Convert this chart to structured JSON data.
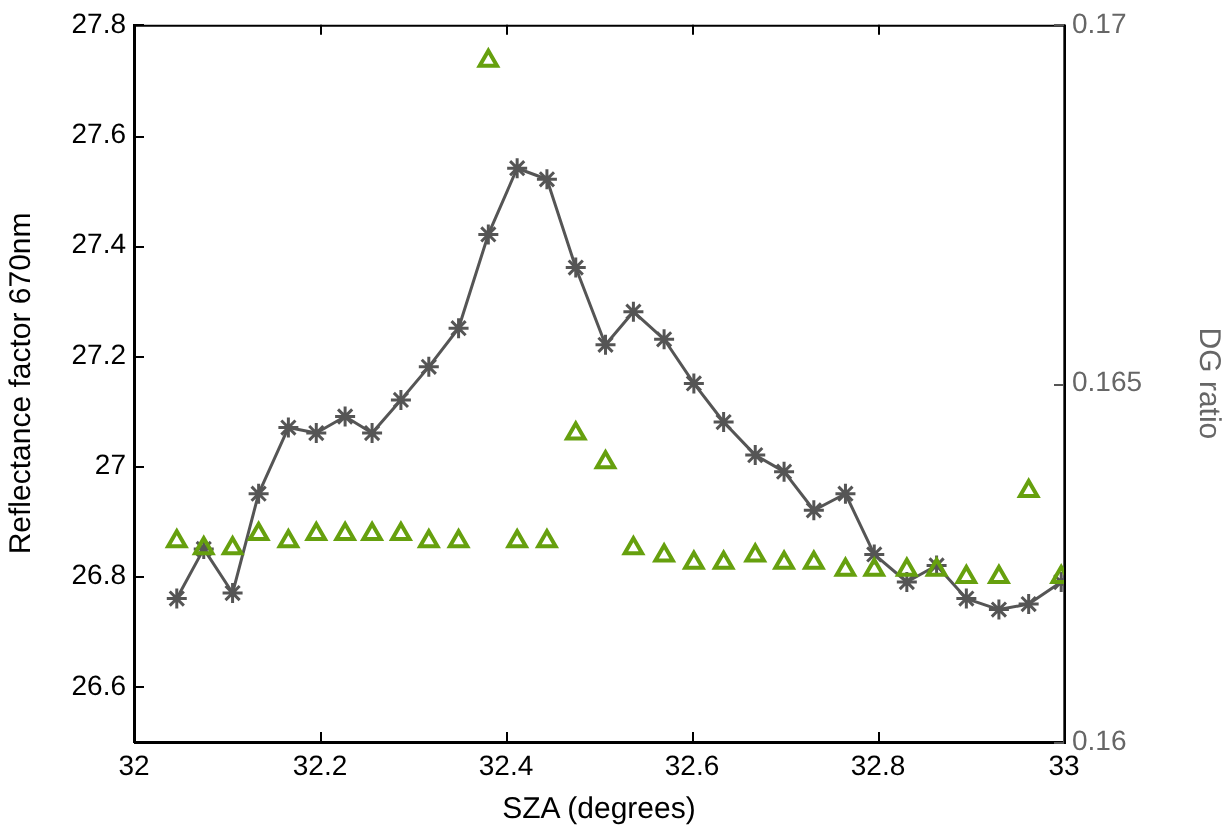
{
  "chart_data": {
    "type": "line",
    "xlabel": "SZA (degrees)",
    "ylabel": "Reflectance factor 670nm",
    "y2label": "DG ratio",
    "xlim": [
      32,
      33
    ],
    "xticks": [
      32,
      32.2,
      32.4,
      32.6,
      32.8,
      33
    ],
    "ylim": [
      26.5,
      27.8
    ],
    "yticks": [
      26.6,
      26.8,
      27,
      27.2,
      27.4,
      27.6,
      27.8
    ],
    "y2lim": [
      0.16,
      0.17
    ],
    "y2ticks": [
      0.16,
      0.165,
      0.17
    ],
    "legend": false,
    "series": [
      {
        "type": "line",
        "color": "#555555",
        "marker": "cross",
        "line_style": "solid",
        "x": [
          32.046,
          32.075,
          32.106,
          32.134,
          32.166,
          32.196,
          32.227,
          32.256,
          32.287,
          32.317,
          32.349,
          32.381,
          32.412,
          32.444,
          32.475,
          32.507,
          32.537,
          32.57,
          32.602,
          32.634,
          32.668,
          32.699,
          32.731,
          32.765,
          32.796,
          32.831,
          32.863,
          32.895,
          32.93,
          32.962,
          32.997
        ],
        "values": [
          26.76,
          26.85,
          26.77,
          26.95,
          27.07,
          27.06,
          27.09,
          27.06,
          27.12,
          27.18,
          27.25,
          27.42,
          27.54,
          27.52,
          27.36,
          27.22,
          27.28,
          27.23,
          27.15,
          27.08,
          27.02,
          26.99,
          26.92,
          26.95,
          26.84,
          26.79,
          26.82,
          26.76,
          26.74,
          26.75,
          26.79
        ]
      },
      {
        "type": "scatter",
        "axis": "y2",
        "color": "#66a00e",
        "marker": "triangle",
        "x": [
          32.046,
          32.075,
          32.106,
          32.134,
          32.166,
          32.196,
          32.227,
          32.256,
          32.287,
          32.317,
          32.349,
          32.381,
          32.412,
          32.444,
          32.475,
          32.507,
          32.537,
          32.57,
          32.602,
          32.634,
          32.668,
          32.699,
          32.731,
          32.765,
          32.796,
          32.831,
          32.863,
          32.895,
          32.93,
          32.962,
          32.997
        ],
        "values": [
          0.1628,
          0.1627,
          0.1627,
          0.1629,
          0.1628,
          0.1629,
          0.1629,
          0.1629,
          0.1629,
          0.1628,
          0.1628,
          0.1695,
          0.1628,
          0.1628,
          0.1643,
          0.1639,
          0.1627,
          0.1626,
          0.1625,
          0.1625,
          0.1626,
          0.1625,
          0.1625,
          0.1624,
          0.1624,
          0.1624,
          0.1624,
          0.1623,
          0.1623,
          0.1635,
          0.1623
        ]
      }
    ]
  }
}
